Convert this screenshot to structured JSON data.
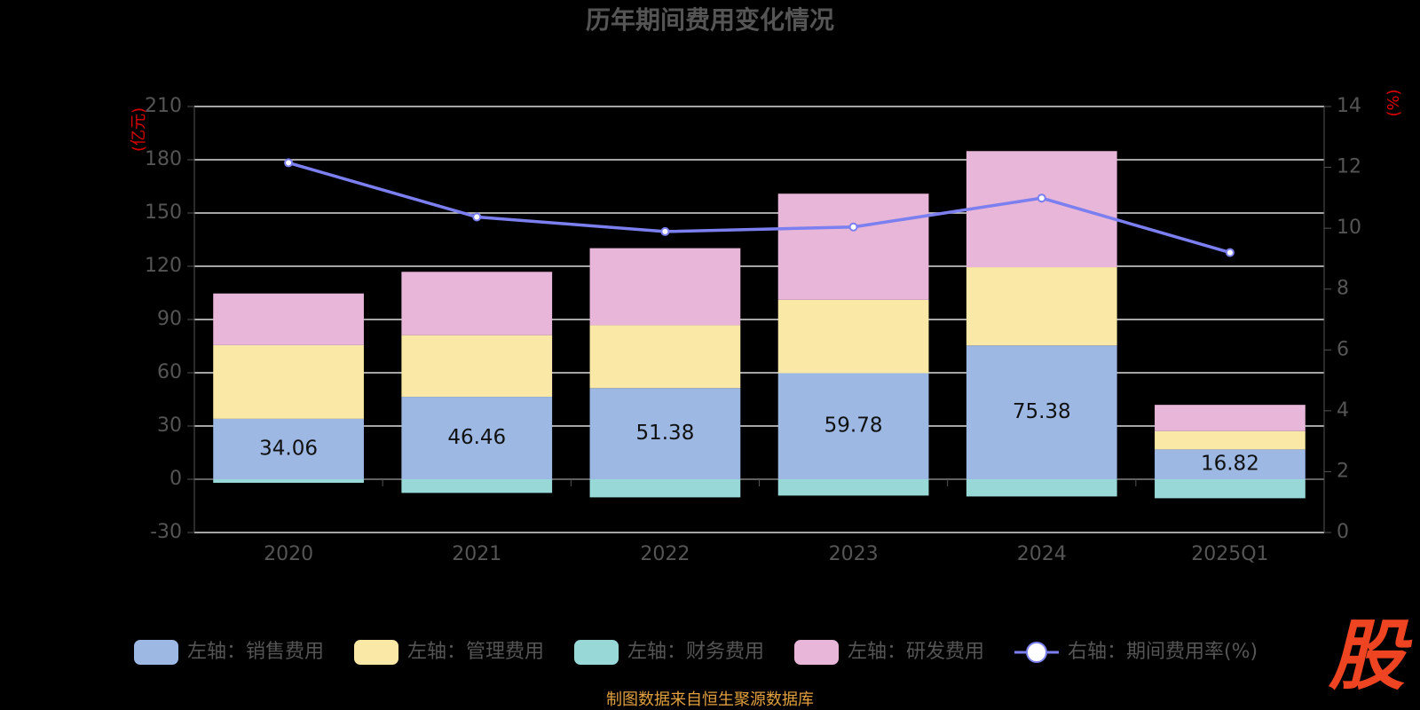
{
  "chart_data": {
    "type": "bar",
    "title": "历年期间费用变化情况",
    "y_label": "(亿元)",
    "y2_label": "(%)",
    "categories": [
      "2020",
      "2021",
      "2022",
      "2023",
      "2024",
      "2025Q1"
    ],
    "series": [
      {
        "name": "左轴：销售费用",
        "color": "#9db8e3",
        "values": [
          34.06,
          46.46,
          51.38,
          59.78,
          75.38,
          16.82
        ],
        "show_labels": true
      },
      {
        "name": "左轴：管理费用",
        "color": "#f9e8a6",
        "values": [
          41.5,
          34.7,
          35.4,
          41.3,
          44.1,
          10.3
        ]
      },
      {
        "name": "左轴：财务费用",
        "color": "#98d8d6",
        "values": [
          -2.0,
          -7.7,
          -10.2,
          -9.2,
          -9.7,
          -10.7
        ]
      },
      {
        "name": "左轴：研发费用",
        "color": "#e8b6d8",
        "values": [
          29.1,
          35.7,
          43.4,
          59.8,
          65.4,
          14.8
        ]
      },
      {
        "name": "右轴：期间费用率(%)",
        "color": "#7b7fef",
        "type": "line",
        "axis": "y2",
        "values": [
          12.15,
          10.37,
          9.89,
          10.04,
          10.99,
          9.2
        ]
      }
    ],
    "ylim": [
      -30,
      210
    ],
    "yticks": [
      -30,
      0,
      30,
      60,
      90,
      120,
      150,
      180,
      210
    ],
    "y2lim": [
      0,
      14
    ],
    "y2ticks": [
      0,
      2,
      4,
      6,
      8,
      10,
      12,
      14
    ],
    "grid": true
  },
  "source": "制图数据来自恒生聚源数据库",
  "logo": "股"
}
